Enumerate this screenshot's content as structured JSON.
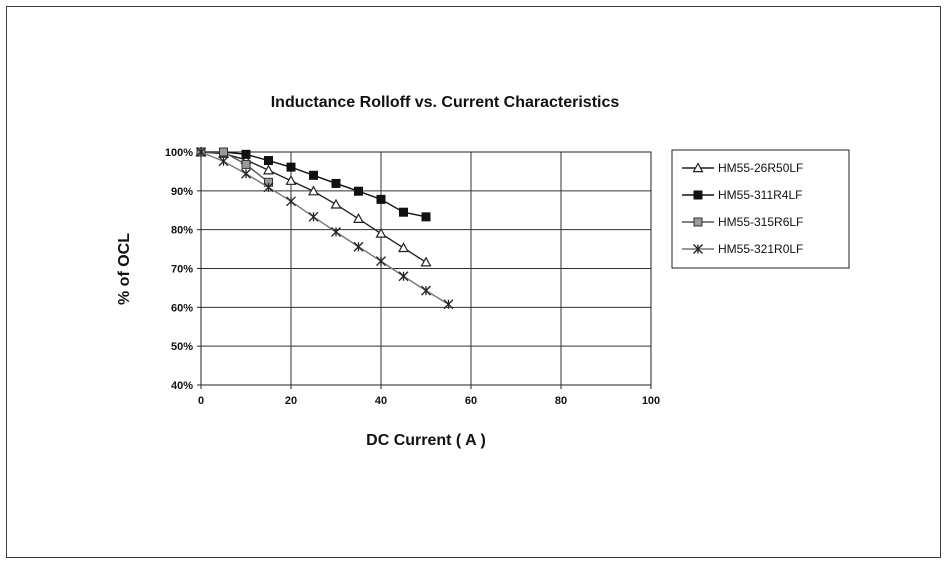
{
  "chart_data": {
    "type": "line",
    "title": "Inductance Rolloff vs. Current Characteristics",
    "xlabel": "DC Current ( A )",
    "ylabel": "% of OCL",
    "xlim": [
      0,
      100
    ],
    "ylim": [
      40,
      100
    ],
    "x_ticks": [
      "0",
      "20",
      "40",
      "60",
      "80",
      "100"
    ],
    "y_ticks": [
      "100%",
      "90%",
      "80%",
      "70%",
      "60%",
      "50%",
      "40%"
    ],
    "grid": true,
    "legend_position": "right",
    "series": [
      {
        "name": "HM55-26R50LF",
        "marker": "open-triangle",
        "color": "#222222",
        "x": [
          0,
          5,
          10,
          15,
          20,
          25,
          30,
          35,
          40,
          45,
          50
        ],
        "y": [
          100,
          99.6,
          98,
          95.3,
          92.6,
          89.9,
          86.5,
          82.8,
          79,
          75.3,
          71.6
        ]
      },
      {
        "name": "HM55-311R4LF",
        "marker": "filled-square",
        "color": "#111111",
        "x": [
          0,
          5,
          10,
          15,
          20,
          25,
          30,
          35,
          40,
          45,
          50
        ],
        "y": [
          100,
          100,
          99.4,
          97.8,
          96.1,
          94,
          91.9,
          89.9,
          87.8,
          84.5,
          83.3
        ]
      },
      {
        "name": "HM55-315R6LF",
        "marker": "gray-square",
        "color": "#555555",
        "x": [
          0,
          5,
          10,
          15
        ],
        "y": [
          100,
          100,
          96.8,
          92.2
        ]
      },
      {
        "name": "HM55-321R0LF",
        "marker": "star",
        "color": "#777777",
        "x": [
          0,
          5,
          10,
          15,
          20,
          25,
          30,
          35,
          40,
          45,
          50,
          55
        ],
        "y": [
          100,
          97.6,
          94.4,
          90.9,
          87.3,
          83.3,
          79.4,
          75.6,
          71.9,
          68,
          64.3,
          60.8
        ]
      }
    ]
  }
}
